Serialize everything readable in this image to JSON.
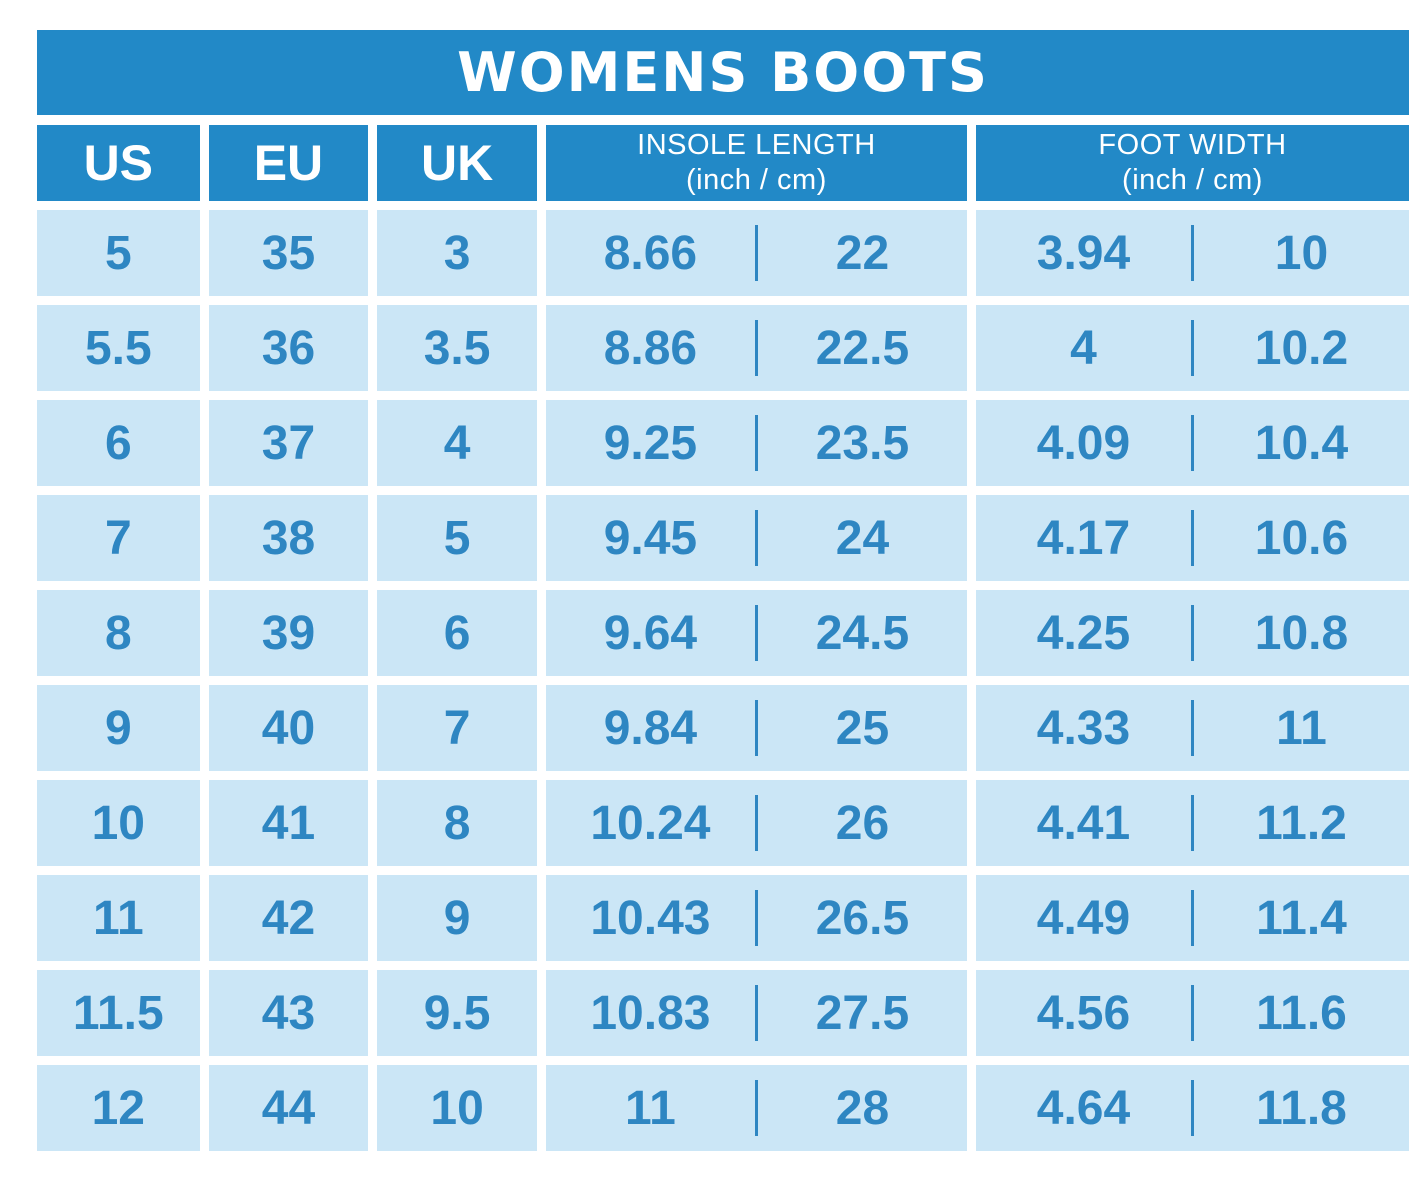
{
  "chart_data": {
    "type": "table",
    "title": "WOMENS BOOTS",
    "columns": [
      "US",
      "EU",
      "UK",
      "INSOLE LENGTH (inch / cm)",
      "FOOT WIDTH (inch / cm)"
    ],
    "rows": [
      {
        "us": "5",
        "eu": "35",
        "uk": "3",
        "insole_inch": "8.66",
        "insole_cm": "22",
        "width_inch": "3.94",
        "width_cm": "10"
      },
      {
        "us": "5.5",
        "eu": "36",
        "uk": "3.5",
        "insole_inch": "8.86",
        "insole_cm": "22.5",
        "width_inch": "4",
        "width_cm": "10.2"
      },
      {
        "us": "6",
        "eu": "37",
        "uk": "4",
        "insole_inch": "9.25",
        "insole_cm": "23.5",
        "width_inch": "4.09",
        "width_cm": "10.4"
      },
      {
        "us": "7",
        "eu": "38",
        "uk": "5",
        "insole_inch": "9.45",
        "insole_cm": "24",
        "width_inch": "4.17",
        "width_cm": "10.6"
      },
      {
        "us": "8",
        "eu": "39",
        "uk": "6",
        "insole_inch": "9.64",
        "insole_cm": "24.5",
        "width_inch": "4.25",
        "width_cm": "10.8"
      },
      {
        "us": "9",
        "eu": "40",
        "uk": "7",
        "insole_inch": "9.84",
        "insole_cm": "25",
        "width_inch": "4.33",
        "width_cm": "11"
      },
      {
        "us": "10",
        "eu": "41",
        "uk": "8",
        "insole_inch": "10.24",
        "insole_cm": "26",
        "width_inch": "4.41",
        "width_cm": "11.2"
      },
      {
        "us": "11",
        "eu": "42",
        "uk": "9",
        "insole_inch": "10.43",
        "insole_cm": "26.5",
        "width_inch": "4.49",
        "width_cm": "11.4"
      },
      {
        "us": "11.5",
        "eu": "43",
        "uk": "9.5",
        "insole_inch": "10.83",
        "insole_cm": "27.5",
        "width_inch": "4.56",
        "width_cm": "11.6"
      },
      {
        "us": "12",
        "eu": "44",
        "uk": "10",
        "insole_inch": "11",
        "insole_cm": "28",
        "width_inch": "4.64",
        "width_cm": "11.8"
      }
    ]
  },
  "header": {
    "title": "WOMENS BOOTS",
    "cols": {
      "us": "US",
      "eu": "EU",
      "uk": "UK",
      "insole_line1": "INSOLE LENGTH",
      "insole_line2": "(inch / cm)",
      "foot_line1": "FOOT WIDTH",
      "foot_line2": "(inch / cm)"
    }
  },
  "colors": {
    "header_blue": "#2289c7",
    "cell_background": "#cbe6f6",
    "cell_text": "#2e86c2",
    "page_background": "#ffffff"
  }
}
